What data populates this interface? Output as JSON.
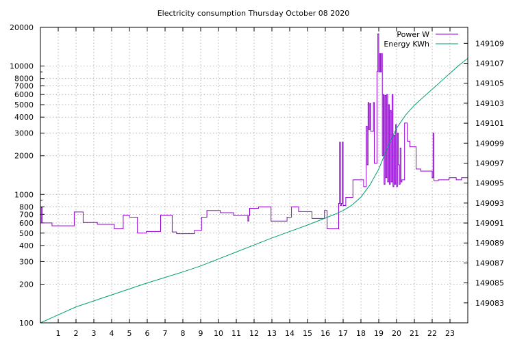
{
  "chart_data": {
    "type": "line",
    "title": "Electricity consumption Thursday October 08 2020",
    "xlabel": "",
    "ylabel": "",
    "y2label": "",
    "xlim": [
      0,
      24
    ],
    "ylim": [
      100,
      20000
    ],
    "y2lim": [
      149081,
      149110.6
    ],
    "yscale": "log",
    "grid": true,
    "legend_position": "top-right",
    "x_ticks": [
      "1",
      "2",
      "3",
      "4",
      "5",
      "6",
      "7",
      "8",
      "9",
      "10",
      "11",
      "12",
      "13",
      "14",
      "15",
      "16",
      "17",
      "18",
      "19",
      "20",
      "21",
      "22",
      "23"
    ],
    "y_ticks": [
      {
        "value": 100,
        "label": "100"
      },
      {
        "value": 200,
        "label": "200"
      },
      {
        "value": 300,
        "label": "300"
      },
      {
        "value": 400,
        "label": "400"
      },
      {
        "value": 500,
        "label": "500"
      },
      {
        "value": 600,
        "label": "600"
      },
      {
        "value": 700,
        "label": "700"
      },
      {
        "value": 800,
        "label": "800"
      },
      {
        "value": 1000,
        "label": "1000"
      },
      {
        "value": 2000,
        "label": "2000"
      },
      {
        "value": 3000,
        "label": "3000"
      },
      {
        "value": 4000,
        "label": "4000"
      },
      {
        "value": 5000,
        "label": "5000"
      },
      {
        "value": 6000,
        "label": "6000"
      },
      {
        "value": 7000,
        "label": "7000"
      },
      {
        "value": 8000,
        "label": "8000"
      },
      {
        "value": 10000,
        "label": "10000"
      },
      {
        "value": 20000,
        "label": "20000"
      }
    ],
    "y2_ticks": [
      {
        "value": 149083,
        "label": "149083"
      },
      {
        "value": 149085,
        "label": "149085"
      },
      {
        "value": 149087,
        "label": "149087"
      },
      {
        "value": 149089,
        "label": "149089"
      },
      {
        "value": 149091,
        "label": "149091"
      },
      {
        "value": 149093,
        "label": "149093"
      },
      {
        "value": 149095,
        "label": "149095"
      },
      {
        "value": 149097,
        "label": "149097"
      },
      {
        "value": 149099,
        "label": "149099"
      },
      {
        "value": 149101,
        "label": "149101"
      },
      {
        "value": 149103,
        "label": "149103"
      },
      {
        "value": 149105,
        "label": "149105"
      },
      {
        "value": 149107,
        "label": "149107"
      },
      {
        "value": 149109,
        "label": "149109"
      }
    ],
    "series": [
      {
        "name": "Power W",
        "color": "#9400d3",
        "axis": "y",
        "step": true,
        "points": [
          [
            0.0,
            600
          ],
          [
            0.05,
            790
          ],
          [
            0.1,
            600
          ],
          [
            0.6,
            600
          ],
          [
            0.65,
            570
          ],
          [
            1.85,
            570
          ],
          [
            1.9,
            730
          ],
          [
            2.35,
            730
          ],
          [
            2.4,
            605
          ],
          [
            3.15,
            605
          ],
          [
            3.2,
            585
          ],
          [
            4.1,
            585
          ],
          [
            4.15,
            540
          ],
          [
            4.6,
            540
          ],
          [
            4.65,
            690
          ],
          [
            4.95,
            690
          ],
          [
            5.0,
            665
          ],
          [
            5.4,
            665
          ],
          [
            5.45,
            500
          ],
          [
            5.9,
            500
          ],
          [
            5.95,
            515
          ],
          [
            6.7,
            515
          ],
          [
            6.75,
            690
          ],
          [
            7.35,
            690
          ],
          [
            7.4,
            510
          ],
          [
            7.6,
            510
          ],
          [
            7.65,
            495
          ],
          [
            8.6,
            495
          ],
          [
            8.65,
            525
          ],
          [
            9.0,
            525
          ],
          [
            9.05,
            665
          ],
          [
            9.3,
            665
          ],
          [
            9.35,
            750
          ],
          [
            10.05,
            750
          ],
          [
            10.1,
            720
          ],
          [
            10.8,
            720
          ],
          [
            10.85,
            685
          ],
          [
            11.6,
            685
          ],
          [
            11.65,
            620
          ],
          [
            11.7,
            685
          ],
          [
            11.75,
            780
          ],
          [
            12.2,
            780
          ],
          [
            12.25,
            800
          ],
          [
            12.9,
            800
          ],
          [
            12.95,
            620
          ],
          [
            13.8,
            620
          ],
          [
            13.85,
            665
          ],
          [
            14.05,
            665
          ],
          [
            14.1,
            800
          ],
          [
            14.45,
            800
          ],
          [
            14.5,
            735
          ],
          [
            15.2,
            735
          ],
          [
            15.25,
            650
          ],
          [
            15.9,
            650
          ],
          [
            15.95,
            750
          ],
          [
            16.05,
            750
          ],
          [
            16.1,
            540
          ],
          [
            16.7,
            540
          ],
          [
            16.75,
            850
          ],
          [
            16.8,
            2550
          ],
          [
            16.85,
            820
          ],
          [
            16.9,
            850
          ],
          [
            16.95,
            2550
          ],
          [
            17.0,
            820
          ],
          [
            17.1,
            820
          ],
          [
            17.15,
            950
          ],
          [
            17.5,
            950
          ],
          [
            17.55,
            1300
          ],
          [
            18.1,
            1300
          ],
          [
            18.15,
            1150
          ],
          [
            18.25,
            1150
          ],
          [
            18.3,
            3400
          ],
          [
            18.35,
            1700
          ],
          [
            18.4,
            5200
          ],
          [
            18.45,
            3200
          ],
          [
            18.5,
            5100
          ],
          [
            18.55,
            3100
          ],
          [
            18.7,
            5200
          ],
          [
            18.75,
            1750
          ],
          [
            18.85,
            1750
          ],
          [
            18.9,
            9100
          ],
          [
            18.95,
            17800
          ],
          [
            19.0,
            9000
          ],
          [
            19.05,
            12500
          ],
          [
            19.1,
            9000
          ],
          [
            19.15,
            12500
          ],
          [
            19.2,
            2000
          ],
          [
            19.25,
            6000
          ],
          [
            19.3,
            1200
          ],
          [
            19.35,
            5900
          ],
          [
            19.4,
            1350
          ],
          [
            19.45,
            6000
          ],
          [
            19.5,
            1250
          ],
          [
            19.55,
            5000
          ],
          [
            19.6,
            1200
          ],
          [
            19.65,
            4500
          ],
          [
            19.7,
            1250
          ],
          [
            19.75,
            6000
          ],
          [
            19.8,
            1150
          ],
          [
            19.85,
            2900
          ],
          [
            19.9,
            1200
          ],
          [
            19.95,
            3500
          ],
          [
            20.0,
            1150
          ],
          [
            20.05,
            3000
          ],
          [
            20.1,
            1700
          ],
          [
            20.15,
            1200
          ],
          [
            20.2,
            2300
          ],
          [
            20.25,
            1250
          ],
          [
            20.3,
            1300
          ],
          [
            20.4,
            1300
          ],
          [
            20.45,
            3600
          ],
          [
            20.55,
            3600
          ],
          [
            20.6,
            2600
          ],
          [
            20.7,
            2600
          ],
          [
            20.75,
            2350
          ],
          [
            21.05,
            2350
          ],
          [
            21.1,
            1580
          ],
          [
            21.3,
            1580
          ],
          [
            21.35,
            1520
          ],
          [
            21.95,
            1520
          ],
          [
            22.0,
            1350
          ],
          [
            22.05,
            3000
          ],
          [
            22.1,
            1280
          ],
          [
            22.3,
            1280
          ],
          [
            22.35,
            1300
          ],
          [
            22.9,
            1300
          ],
          [
            22.95,
            1350
          ],
          [
            23.3,
            1350
          ],
          [
            23.35,
            1300
          ],
          [
            23.6,
            1300
          ],
          [
            23.65,
            1350
          ],
          [
            23.95,
            1350
          ],
          [
            24.0,
            1300
          ]
        ]
      },
      {
        "name": "Energy KWh",
        "color": "#009e73",
        "axis": "y2",
        "step": false,
        "points": [
          [
            0,
            149081.0
          ],
          [
            1,
            149081.8
          ],
          [
            2,
            149082.6
          ],
          [
            3,
            149083.2
          ],
          [
            4,
            149083.8
          ],
          [
            5,
            149084.4
          ],
          [
            6,
            149085.0
          ],
          [
            7,
            149085.55
          ],
          [
            8,
            149086.1
          ],
          [
            9,
            149086.7
          ],
          [
            10,
            149087.4
          ],
          [
            11,
            149088.1
          ],
          [
            12,
            149088.8
          ],
          [
            13,
            149089.5
          ],
          [
            14,
            149090.15
          ],
          [
            15,
            149090.8
          ],
          [
            16,
            149091.5
          ],
          [
            16.5,
            149091.85
          ],
          [
            17,
            149092.25
          ],
          [
            17.5,
            149092.8
          ],
          [
            18,
            149093.6
          ],
          [
            18.5,
            149094.8
          ],
          [
            19,
            149096.4
          ],
          [
            19.5,
            149098.6
          ],
          [
            20,
            149100.5
          ],
          [
            20.5,
            149101.8
          ],
          [
            21,
            149102.8
          ],
          [
            21.5,
            149103.6
          ],
          [
            22,
            149104.4
          ],
          [
            22.5,
            149105.2
          ],
          [
            23,
            149106.0
          ],
          [
            23.5,
            149106.8
          ],
          [
            24,
            149107.5
          ]
        ]
      }
    ]
  }
}
